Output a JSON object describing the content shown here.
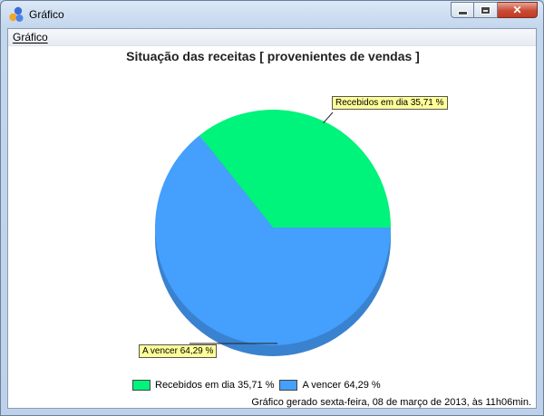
{
  "window": {
    "title": "Gráfico",
    "controls": {
      "minimize": "minimize-icon",
      "maximize": "maximize-icon",
      "close": "✕"
    }
  },
  "menu": {
    "items": [
      {
        "label": "Gráfico"
      }
    ]
  },
  "chart_data": {
    "type": "pie",
    "title": "Situação das receitas [ provenientes de vendas ]",
    "slices": [
      {
        "label": "Recebidos em dia 35,71 %",
        "value": 35.71,
        "color": "#00f37a"
      },
      {
        "label": "A vencer 64,29 %",
        "value": 64.29,
        "color": "#459ffc"
      }
    ],
    "legend": [
      "Recebidos em dia 35,71 %",
      "A vencer 64,29 %"
    ],
    "legend_position": "bottom"
  },
  "footer": {
    "text": "Gráfico gerado sexta-feira, 08 de março de 2013, às 11h06min."
  }
}
